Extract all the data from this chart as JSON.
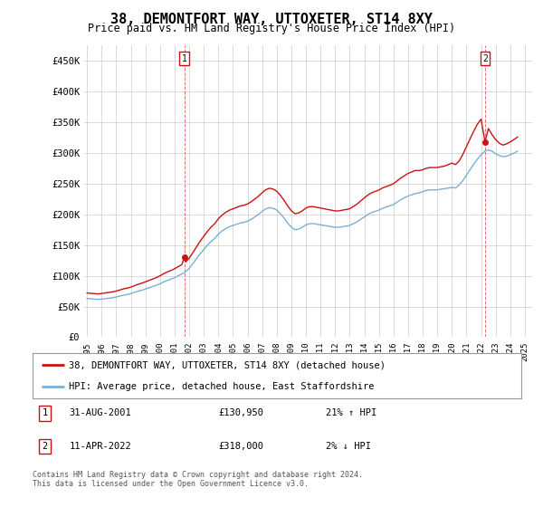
{
  "title": "38, DEMONTFORT WAY, UTTOXETER, ST14 8XY",
  "subtitle": "Price paid vs. HM Land Registry's House Price Index (HPI)",
  "hpi_label": "HPI: Average price, detached house, East Staffordshire",
  "property_label": "38, DEMONTFORT WAY, UTTOXETER, ST14 8XY (detached house)",
  "footnote1": "31-AUG-2001",
  "footnote1_price": "£130,950",
  "footnote1_hpi": "21% ↑ HPI",
  "footnote2": "11-APR-2022",
  "footnote2_price": "£318,000",
  "footnote2_hpi": "2% ↓ HPI",
  "copyright": "Contains HM Land Registry data © Crown copyright and database right 2024.\nThis data is licensed under the Open Government Licence v3.0.",
  "hpi_color": "#7ab0d4",
  "property_color": "#cc1111",
  "marker1_x": 2001.67,
  "marker1_y": 130950,
  "marker2_x": 2022.27,
  "marker2_y": 318000,
  "ylim": [
    0,
    475000
  ],
  "xlim_start": 1994.8,
  "xlim_end": 2025.5,
  "background": "#ffffff",
  "grid_color": "#cccccc",
  "hpi_data": [
    [
      1995.0,
      63000
    ],
    [
      1995.25,
      62500
    ],
    [
      1995.5,
      62000
    ],
    [
      1995.75,
      61500
    ],
    [
      1996.0,
      62000
    ],
    [
      1996.25,
      62800
    ],
    [
      1996.5,
      63500
    ],
    [
      1996.75,
      64200
    ],
    [
      1997.0,
      65500
    ],
    [
      1997.25,
      67000
    ],
    [
      1997.5,
      68500
    ],
    [
      1997.75,
      69500
    ],
    [
      1998.0,
      71000
    ],
    [
      1998.25,
      73000
    ],
    [
      1998.5,
      75000
    ],
    [
      1998.75,
      76500
    ],
    [
      1999.0,
      78500
    ],
    [
      1999.25,
      80500
    ],
    [
      1999.5,
      82500
    ],
    [
      1999.75,
      84500
    ],
    [
      2000.0,
      87000
    ],
    [
      2000.25,
      90000
    ],
    [
      2000.5,
      92500
    ],
    [
      2000.75,
      94500
    ],
    [
      2001.0,
      97000
    ],
    [
      2001.25,
      100000
    ],
    [
      2001.5,
      103000
    ],
    [
      2001.75,
      106500
    ],
    [
      2002.0,
      112000
    ],
    [
      2002.25,
      120000
    ],
    [
      2002.5,
      128000
    ],
    [
      2002.75,
      136000
    ],
    [
      2003.0,
      143000
    ],
    [
      2003.25,
      150000
    ],
    [
      2003.5,
      156000
    ],
    [
      2003.75,
      161000
    ],
    [
      2004.0,
      168000
    ],
    [
      2004.25,
      173000
    ],
    [
      2004.5,
      177000
    ],
    [
      2004.75,
      180000
    ],
    [
      2005.0,
      182000
    ],
    [
      2005.25,
      184000
    ],
    [
      2005.5,
      186000
    ],
    [
      2005.75,
      187000
    ],
    [
      2006.0,
      189000
    ],
    [
      2006.25,
      192000
    ],
    [
      2006.5,
      196000
    ],
    [
      2006.75,
      200000
    ],
    [
      2007.0,
      205000
    ],
    [
      2007.25,
      209000
    ],
    [
      2007.5,
      211000
    ],
    [
      2007.75,
      210000
    ],
    [
      2008.0,
      207000
    ],
    [
      2008.25,
      201000
    ],
    [
      2008.5,
      194000
    ],
    [
      2008.75,
      186000
    ],
    [
      2009.0,
      179000
    ],
    [
      2009.25,
      175000
    ],
    [
      2009.5,
      176000
    ],
    [
      2009.75,
      179000
    ],
    [
      2010.0,
      183000
    ],
    [
      2010.25,
      185000
    ],
    [
      2010.5,
      185000
    ],
    [
      2010.75,
      184000
    ],
    [
      2011.0,
      183000
    ],
    [
      2011.25,
      182000
    ],
    [
      2011.5,
      181000
    ],
    [
      2011.75,
      180000
    ],
    [
      2012.0,
      179000
    ],
    [
      2012.25,
      179000
    ],
    [
      2012.5,
      180000
    ],
    [
      2012.75,
      181000
    ],
    [
      2013.0,
      182000
    ],
    [
      2013.25,
      185000
    ],
    [
      2013.5,
      188000
    ],
    [
      2013.75,
      192000
    ],
    [
      2014.0,
      196000
    ],
    [
      2014.25,
      200000
    ],
    [
      2014.5,
      203000
    ],
    [
      2014.75,
      205000
    ],
    [
      2015.0,
      207000
    ],
    [
      2015.25,
      210000
    ],
    [
      2015.5,
      212000
    ],
    [
      2015.75,
      214000
    ],
    [
      2016.0,
      216000
    ],
    [
      2016.25,
      220000
    ],
    [
      2016.5,
      224000
    ],
    [
      2016.75,
      227000
    ],
    [
      2017.0,
      230000
    ],
    [
      2017.25,
      232000
    ],
    [
      2017.5,
      234000
    ],
    [
      2017.75,
      235000
    ],
    [
      2018.0,
      237000
    ],
    [
      2018.25,
      239000
    ],
    [
      2018.5,
      240000
    ],
    [
      2018.75,
      240000
    ],
    [
      2019.0,
      240000
    ],
    [
      2019.25,
      241000
    ],
    [
      2019.5,
      242000
    ],
    [
      2019.75,
      243000
    ],
    [
      2020.0,
      244000
    ],
    [
      2020.25,
      243000
    ],
    [
      2020.5,
      248000
    ],
    [
      2020.75,
      255000
    ],
    [
      2021.0,
      264000
    ],
    [
      2021.25,
      273000
    ],
    [
      2021.5,
      282000
    ],
    [
      2021.75,
      290000
    ],
    [
      2022.0,
      297000
    ],
    [
      2022.25,
      303000
    ],
    [
      2022.5,
      305000
    ],
    [
      2022.75,
      303000
    ],
    [
      2023.0,
      299000
    ],
    [
      2023.25,
      296000
    ],
    [
      2023.5,
      294000
    ],
    [
      2023.75,
      295000
    ],
    [
      2024.0,
      297000
    ],
    [
      2024.25,
      300000
    ],
    [
      2024.5,
      303000
    ]
  ],
  "property_data": [
    [
      1995.0,
      72000
    ],
    [
      1995.25,
      71500
    ],
    [
      1995.5,
      71000
    ],
    [
      1995.75,
      70500
    ],
    [
      1996.0,
      71200
    ],
    [
      1996.25,
      72000
    ],
    [
      1996.5,
      73000
    ],
    [
      1996.75,
      73800
    ],
    [
      1997.0,
      75200
    ],
    [
      1997.25,
      76900
    ],
    [
      1997.5,
      78700
    ],
    [
      1997.75,
      79900
    ],
    [
      1998.0,
      81600
    ],
    [
      1998.25,
      83900
    ],
    [
      1998.5,
      86200
    ],
    [
      1998.75,
      87900
    ],
    [
      1999.0,
      90200
    ],
    [
      1999.25,
      92500
    ],
    [
      1999.5,
      94800
    ],
    [
      1999.75,
      97100
    ],
    [
      2000.0,
      100000
    ],
    [
      2000.25,
      103400
    ],
    [
      2000.5,
      106300
    ],
    [
      2000.75,
      108600
    ],
    [
      2001.0,
      111500
    ],
    [
      2001.25,
      114900
    ],
    [
      2001.5,
      118400
    ],
    [
      2001.67,
      130950
    ],
    [
      2001.75,
      122400
    ],
    [
      2002.0,
      128700
    ],
    [
      2002.25,
      137900
    ],
    [
      2002.5,
      147100
    ],
    [
      2002.75,
      156300
    ],
    [
      2003.0,
      164400
    ],
    [
      2003.25,
      172400
    ],
    [
      2003.5,
      179400
    ],
    [
      2003.75,
      185000
    ],
    [
      2004.0,
      193000
    ],
    [
      2004.25,
      198800
    ],
    [
      2004.5,
      203400
    ],
    [
      2004.75,
      206800
    ],
    [
      2005.0,
      209100
    ],
    [
      2005.25,
      211400
    ],
    [
      2005.5,
      213800
    ],
    [
      2005.75,
      214900
    ],
    [
      2006.0,
      217100
    ],
    [
      2006.25,
      220700
    ],
    [
      2006.5,
      225200
    ],
    [
      2006.75,
      229800
    ],
    [
      2007.0,
      235600
    ],
    [
      2007.25,
      240300
    ],
    [
      2007.5,
      242600
    ],
    [
      2007.75,
      241300
    ],
    [
      2008.0,
      237800
    ],
    [
      2008.25,
      231000
    ],
    [
      2008.5,
      223000
    ],
    [
      2008.75,
      213800
    ],
    [
      2009.0,
      205800
    ],
    [
      2009.25,
      201200
    ],
    [
      2009.5,
      202300
    ],
    [
      2009.75,
      205800
    ],
    [
      2010.0,
      210400
    ],
    [
      2010.25,
      212700
    ],
    [
      2010.5,
      212700
    ],
    [
      2010.75,
      211500
    ],
    [
      2011.0,
      210400
    ],
    [
      2011.25,
      209200
    ],
    [
      2011.5,
      208000
    ],
    [
      2011.75,
      206900
    ],
    [
      2012.0,
      205700
    ],
    [
      2012.25,
      205700
    ],
    [
      2012.5,
      206900
    ],
    [
      2012.75,
      208000
    ],
    [
      2013.0,
      209200
    ],
    [
      2013.25,
      213000
    ],
    [
      2013.5,
      216800
    ],
    [
      2013.75,
      221900
    ],
    [
      2014.0,
      226800
    ],
    [
      2014.25,
      231800
    ],
    [
      2014.5,
      235300
    ],
    [
      2014.75,
      237500
    ],
    [
      2015.0,
      239700
    ],
    [
      2015.25,
      243200
    ],
    [
      2015.5,
      245400
    ],
    [
      2015.75,
      247600
    ],
    [
      2016.0,
      250100
    ],
    [
      2016.25,
      254700
    ],
    [
      2016.5,
      259400
    ],
    [
      2016.75,
      263100
    ],
    [
      2017.0,
      266800
    ],
    [
      2017.25,
      269200
    ],
    [
      2017.5,
      271500
    ],
    [
      2017.75,
      271500
    ],
    [
      2018.0,
      272700
    ],
    [
      2018.25,
      275200
    ],
    [
      2018.5,
      276400
    ],
    [
      2018.75,
      276400
    ],
    [
      2019.0,
      276400
    ],
    [
      2019.25,
      277600
    ],
    [
      2019.5,
      278800
    ],
    [
      2019.75,
      281200
    ],
    [
      2020.0,
      283600
    ],
    [
      2020.25,
      281200
    ],
    [
      2020.5,
      287200
    ],
    [
      2020.75,
      297700
    ],
    [
      2021.0,
      310500
    ],
    [
      2021.25,
      323300
    ],
    [
      2021.5,
      335800
    ],
    [
      2021.75,
      347100
    ],
    [
      2022.0,
      355200
    ],
    [
      2022.27,
      318000
    ],
    [
      2022.5,
      340000
    ],
    [
      2022.75,
      330000
    ],
    [
      2023.0,
      322000
    ],
    [
      2023.25,
      316000
    ],
    [
      2023.5,
      313000
    ],
    [
      2023.75,
      315000
    ],
    [
      2024.0,
      318000
    ],
    [
      2024.25,
      322000
    ],
    [
      2024.5,
      326000
    ]
  ]
}
